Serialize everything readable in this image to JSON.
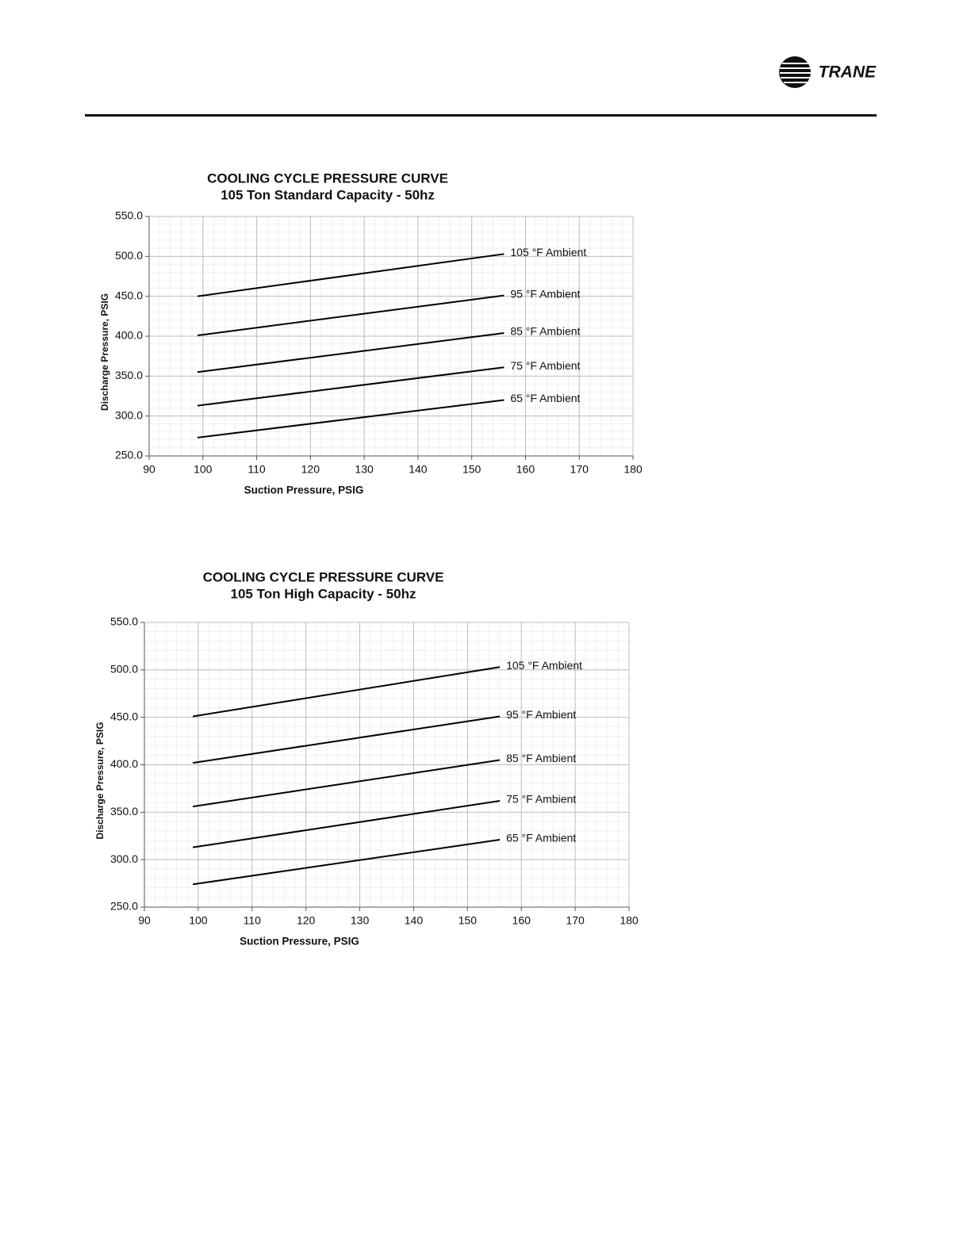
{
  "header": {
    "logo": "TRANE"
  },
  "chart_data": [
    {
      "type": "line",
      "title": "COOLING CYCLE PRESSURE CURVE",
      "subtitle": "105 Ton Standard Capacity - 50hz",
      "x_label": "Suction Pressure, PSIG",
      "y_label": "Discharge Pressure, PSIG",
      "x": [
        99,
        156
      ],
      "series": [
        {
          "name": "105 °F Ambient",
          "color": "#000000",
          "values": [
            450,
            503
          ]
        },
        {
          "name": "95 °F Ambient",
          "color": "#000000",
          "values": [
            401,
            451
          ]
        },
        {
          "name": "85 °F Ambient",
          "color": "#000000",
          "values": [
            355,
            404
          ]
        },
        {
          "name": "75 °F Ambient",
          "color": "#000000",
          "values": [
            313,
            361
          ]
        },
        {
          "name": "65 °F Ambient",
          "color": "#000000",
          "values": [
            273,
            320
          ]
        }
      ],
      "xlim": [
        90,
        180
      ],
      "xticks": [
        90,
        100,
        110,
        120,
        130,
        140,
        150,
        160,
        170,
        180
      ],
      "ylim": [
        250,
        550
      ],
      "yticks": [
        {
          "value": 250,
          "label": "250.0"
        },
        {
          "value": 300,
          "label": "300.0"
        },
        {
          "value": 350,
          "label": "350.0"
        },
        {
          "value": 400,
          "label": "400.0"
        },
        {
          "value": 450,
          "label": "450.0"
        },
        {
          "value": 500,
          "label": "500.0"
        },
        {
          "value": 550,
          "label": "550.0"
        }
      ],
      "grid": true
    },
    {
      "type": "line",
      "title": "COOLING CYCLE PRESSURE CURVE",
      "subtitle": "105 Ton High Capacity - 50hz",
      "x_label": "Suction Pressure, PSIG",
      "y_label": "Discharge Pressure, PSIG",
      "x": [
        99,
        156
      ],
      "series": [
        {
          "name": "105 °F Ambient",
          "color": "#000000",
          "values": [
            451,
            503
          ]
        },
        {
          "name": "95 °F Ambient",
          "color": "#000000",
          "values": [
            402,
            451
          ]
        },
        {
          "name": "85 °F Ambient",
          "color": "#000000",
          "values": [
            356,
            405
          ]
        },
        {
          "name": "75 °F Ambient",
          "color": "#000000",
          "values": [
            313,
            362
          ]
        },
        {
          "name": "65 °F Ambient",
          "color": "#000000",
          "values": [
            274,
            321
          ]
        }
      ],
      "xlim": [
        90,
        180
      ],
      "xticks": [
        90,
        100,
        110,
        120,
        130,
        140,
        150,
        160,
        170,
        180
      ],
      "ylim": [
        250,
        550
      ],
      "yticks": [
        {
          "value": 250,
          "label": "250.0"
        },
        {
          "value": 300,
          "label": "300.0"
        },
        {
          "value": 350,
          "label": "350.0"
        },
        {
          "value": 400,
          "label": "400.0"
        },
        {
          "value": 450,
          "label": "450.0"
        },
        {
          "value": 500,
          "label": "500.0"
        },
        {
          "value": 550,
          "label": "550.0"
        }
      ],
      "grid": true
    }
  ]
}
